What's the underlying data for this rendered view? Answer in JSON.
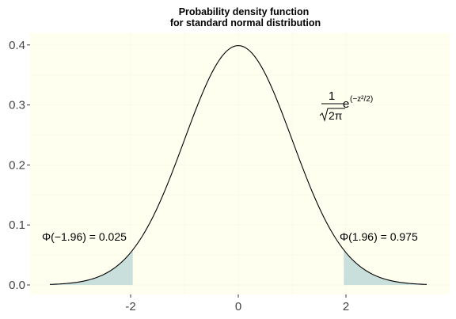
{
  "chart_data": {
    "type": "line",
    "title_line1": "Probability density function",
    "title_line2": "for standard normal distribution",
    "xlabel": "",
    "ylabel": "",
    "xlim": [
      -3.5,
      3.5
    ],
    "ylim": [
      0.0,
      0.4
    ],
    "grid": true,
    "x_ticks": [
      {
        "value": -2,
        "label": "-2"
      },
      {
        "value": 0,
        "label": "0"
      },
      {
        "value": 2,
        "label": "2"
      }
    ],
    "y_ticks": [
      {
        "value": 0.0,
        "label": "0.0"
      },
      {
        "value": 0.1,
        "label": "0.1"
      },
      {
        "value": 0.2,
        "label": "0.2"
      },
      {
        "value": 0.3,
        "label": "0.3"
      },
      {
        "value": 0.4,
        "label": "0.4"
      }
    ],
    "curve": {
      "x": [
        -3.5,
        -3.25,
        -3.0,
        -2.75,
        -2.5,
        -2.25,
        -2.0,
        -1.75,
        -1.5,
        -1.25,
        -1.0,
        -0.75,
        -0.5,
        -0.25,
        0.0,
        0.25,
        0.5,
        0.75,
        1.0,
        1.25,
        1.5,
        1.75,
        2.0,
        2.25,
        2.5,
        2.75,
        3.0,
        3.25,
        3.5
      ],
      "y": [
        0.0009,
        0.002,
        0.0044,
        0.0091,
        0.0175,
        0.0317,
        0.054,
        0.0863,
        0.1295,
        0.1826,
        0.242,
        0.3011,
        0.3521,
        0.3867,
        0.3989,
        0.3867,
        0.3521,
        0.3011,
        0.242,
        0.1826,
        0.1295,
        0.0863,
        0.054,
        0.0317,
        0.0175,
        0.0091,
        0.0044,
        0.002,
        0.0009
      ]
    },
    "shaded_tails": [
      {
        "from": -3.5,
        "to": -1.96
      },
      {
        "from": 1.96,
        "to": 3.5
      }
    ],
    "annotations": {
      "left_text": "Φ(−1.96) = 0.025",
      "right_text": "Φ(1.96) = 0.975",
      "formula_numerator": "1",
      "formula_radicand": "2π",
      "formula_base": "e",
      "formula_exponent": "(−z²/2)"
    },
    "colors": {
      "panel_background": "#fffff0",
      "grid": "#fafae8",
      "curve": "#000000",
      "tail_fill": "#c8dfdc"
    }
  }
}
